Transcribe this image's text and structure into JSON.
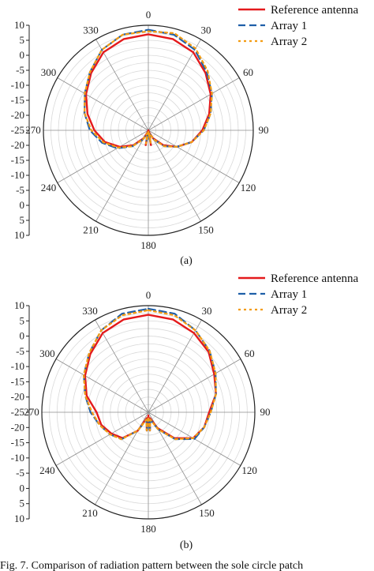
{
  "chart_data": [
    {
      "type": "polar-line",
      "panel_label": "(a)",
      "angle_labels": [
        "0",
        "30",
        "60",
        "90",
        "120",
        "150",
        "180",
        "210",
        "240",
        "270",
        "300",
        "330"
      ],
      "radial_tick_labels": [
        "10",
        "5",
        "0",
        "-5",
        "-10",
        "-15",
        "-20",
        "-25",
        "-20",
        "-15",
        "-10",
        "-5",
        "0",
        "5",
        "10"
      ],
      "rlim": [
        -25,
        10
      ],
      "legend": {
        "position": "top-right"
      },
      "series": [
        {
          "name": "Reference antenna",
          "color": "#e41a1c",
          "style": "solid",
          "theta": [
            0,
            15,
            30,
            45,
            60,
            75,
            90,
            105,
            120,
            135,
            150,
            160,
            170,
            180,
            190,
            200,
            210,
            225,
            240,
            255,
            270,
            285,
            300,
            315,
            330,
            345
          ],
          "r": [
            7,
            6.5,
            5,
            2,
            -1,
            -4,
            -7,
            -10,
            -14,
            -18,
            -22,
            -24.5,
            -20,
            -25,
            -20,
            -24.5,
            -22,
            -18,
            -14,
            -10,
            -7,
            -4,
            -1,
            2,
            5,
            6.5
          ]
        },
        {
          "name": "Array 1",
          "color": "#1f5fa8",
          "style": "dashed",
          "theta": [
            0,
            15,
            30,
            45,
            60,
            75,
            90,
            105,
            120,
            135,
            150,
            160,
            170,
            180,
            190,
            200,
            210,
            225,
            240,
            255,
            270,
            285,
            300,
            315,
            330,
            345
          ],
          "r": [
            8.5,
            8,
            6,
            2.5,
            -0.5,
            -3.5,
            -6.5,
            -10,
            -14,
            -17.5,
            -21.5,
            -24,
            -21,
            -24,
            -21,
            -24,
            -21.5,
            -17.5,
            -13,
            -9,
            -5.5,
            -3,
            -0.5,
            2.5,
            6,
            8
          ]
        },
        {
          "name": "Array 2",
          "color": "#f39c12",
          "style": "dotted",
          "theta": [
            0,
            15,
            30,
            45,
            60,
            75,
            90,
            105,
            120,
            135,
            150,
            160,
            170,
            180,
            190,
            200,
            210,
            225,
            240,
            255,
            270,
            285,
            300,
            315,
            330,
            345
          ],
          "r": [
            8,
            8.5,
            6.5,
            3,
            -0.5,
            -3.5,
            -6.5,
            -10,
            -14,
            -17.5,
            -21.5,
            -24,
            -20.5,
            -24.5,
            -20.5,
            -24,
            -21.5,
            -17.5,
            -13.5,
            -9.5,
            -6,
            -3,
            -0.5,
            2.5,
            6,
            8
          ]
        }
      ]
    },
    {
      "type": "polar-line",
      "panel_label": "(b)",
      "angle_labels": [
        "0",
        "30",
        "60",
        "90",
        "120",
        "150",
        "180",
        "210",
        "240",
        "270",
        "300",
        "330"
      ],
      "radial_tick_labels": [
        "10",
        "5",
        "0",
        "-5",
        "-10",
        "-15",
        "-20",
        "-25",
        "-20",
        "-15",
        "-10",
        "-5",
        "0",
        "5",
        "10"
      ],
      "rlim": [
        -25,
        10
      ],
      "legend": {
        "position": "top-right"
      },
      "series": [
        {
          "name": "Reference antenna",
          "color": "#e41a1c",
          "style": "solid",
          "theta": [
            0,
            15,
            30,
            45,
            60,
            75,
            90,
            105,
            120,
            135,
            150,
            165,
            175,
            180,
            185,
            195,
            210,
            225,
            240,
            255,
            270,
            285,
            300,
            315,
            330,
            345
          ],
          "r": [
            7,
            6.5,
            5,
            3,
            0,
            -2,
            -5,
            -6,
            -8,
            -13,
            -19,
            -23,
            -19,
            -24,
            -19,
            -23,
            -18,
            -13,
            -11,
            -9,
            -8,
            -4,
            -1,
            2,
            5,
            6.5
          ]
        },
        {
          "name": "Array 1",
          "color": "#1f5fa8",
          "style": "dashed",
          "theta": [
            0,
            15,
            30,
            45,
            60,
            75,
            90,
            105,
            120,
            135,
            150,
            165,
            175,
            180,
            185,
            195,
            210,
            225,
            240,
            255,
            270,
            285,
            300,
            315,
            330,
            345
          ],
          "r": [
            9,
            8.5,
            6,
            3.5,
            0.5,
            -2,
            -4.5,
            -6,
            -7.5,
            -12.5,
            -18.5,
            -22.5,
            -19,
            -23,
            -19,
            -22.5,
            -18,
            -12.5,
            -10.5,
            -8.5,
            -6,
            -3.5,
            -0.5,
            2.5,
            6,
            8.5
          ]
        },
        {
          "name": "Array 2",
          "color": "#f39c12",
          "style": "dotted",
          "theta": [
            0,
            15,
            30,
            45,
            60,
            75,
            90,
            105,
            120,
            135,
            150,
            165,
            175,
            180,
            185,
            195,
            210,
            225,
            240,
            255,
            270,
            285,
            300,
            315,
            330,
            345
          ],
          "r": [
            8.5,
            8,
            6,
            3.5,
            0.5,
            -2,
            -4.5,
            -6,
            -8,
            -12.5,
            -18.5,
            -22.5,
            -19,
            -23.5,
            -19,
            -22.5,
            -18,
            -12.5,
            -10.5,
            -8.5,
            -6.5,
            -3.5,
            -0.5,
            2.5,
            6,
            8
          ]
        }
      ]
    }
  ],
  "caption": "Fig. 7.    Comparison of radiation pattern between the sole circle patch"
}
